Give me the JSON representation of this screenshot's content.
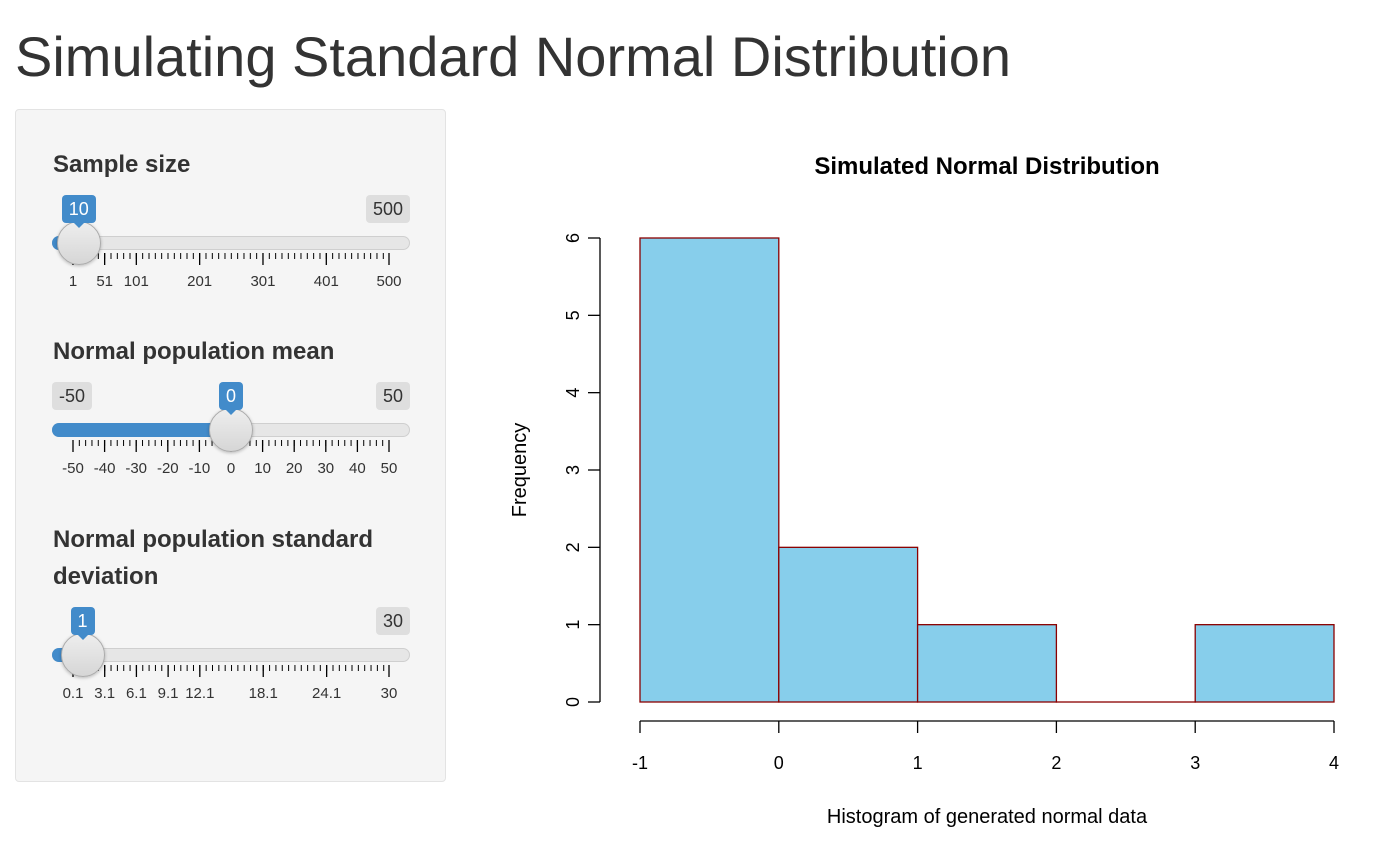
{
  "page_title": "Simulating Standard Normal Distribution",
  "sliders": [
    {
      "label": "Sample size",
      "min_label": "1",
      "max_label": "500",
      "value_label": "10",
      "min": 1,
      "max": 500,
      "value": 10,
      "tick_labels": [
        "1",
        "51",
        "101",
        "201",
        "301",
        "401",
        "500"
      ],
      "show_min_badge": false
    },
    {
      "label": "Normal population mean",
      "min_label": "-50",
      "max_label": "50",
      "value_label": "0",
      "min": -50,
      "max": 50,
      "value": 0,
      "tick_labels": [
        "-50",
        "-40",
        "-30",
        "-20",
        "-10",
        "0",
        "10",
        "20",
        "30",
        "40",
        "50"
      ],
      "show_min_badge": true
    },
    {
      "label": "Normal population standard deviation",
      "min_label": "0.1",
      "max_label": "30",
      "value_label": "1",
      "min": 0.1,
      "max": 30,
      "value": 1,
      "tick_labels": [
        "0.1",
        "3.1",
        "6.1",
        "9.1",
        "12.1",
        "18.1",
        "24.1",
        "30"
      ],
      "show_min_badge": false
    }
  ],
  "colors": {
    "accent": "#428bca",
    "bar_fill": "#87ceeb",
    "bar_border": "#8b0000"
  },
  "chart_data": {
    "type": "bar",
    "title": "Simulated Normal Distribution",
    "xlabel": "Histogram of generated normal data",
    "ylabel": "Frequency",
    "bins": [
      [
        -1,
        0
      ],
      [
        0,
        1
      ],
      [
        1,
        2
      ],
      [
        2,
        3
      ],
      [
        3,
        4
      ]
    ],
    "values": [
      6,
      2,
      1,
      0,
      1
    ],
    "x_ticks": [
      "-1",
      "0",
      "1",
      "2",
      "3",
      "4"
    ],
    "y_ticks": [
      "0",
      "1",
      "2",
      "3",
      "4",
      "5",
      "6"
    ],
    "xlim": [
      -1,
      4
    ],
    "ylim": [
      0,
      6
    ],
    "grid": false
  }
}
